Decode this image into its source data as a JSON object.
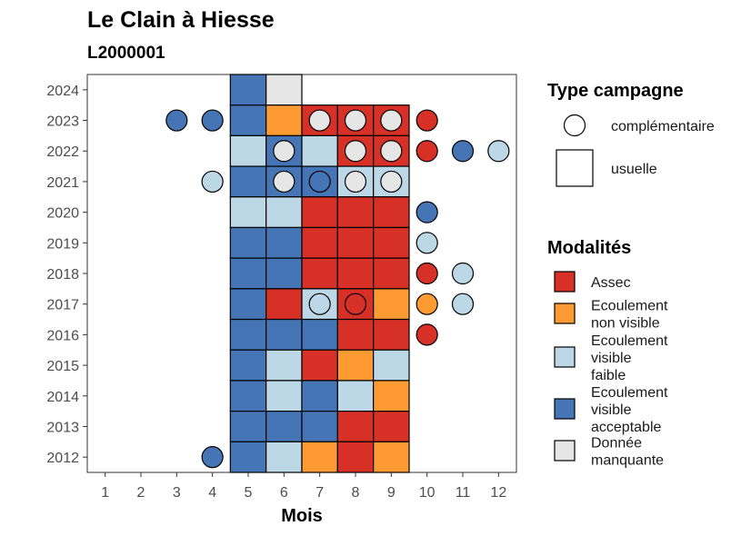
{
  "chart_data": {
    "type": "heatmap",
    "title": "Le Clain à Hiesse",
    "subtitle": "L2000001",
    "xlabel": "Mois",
    "ylabel": "",
    "x_ticks": [
      1,
      2,
      3,
      4,
      5,
      6,
      7,
      8,
      9,
      10,
      11,
      12
    ],
    "y_ticks": [
      2012,
      2013,
      2014,
      2015,
      2016,
      2017,
      2018,
      2019,
      2020,
      2021,
      2022,
      2023,
      2024
    ],
    "xlim": [
      0.5,
      12.5
    ],
    "ylim": [
      2011.5,
      2024.5
    ],
    "grid": false,
    "legend_position": "right",
    "legends": {
      "campagne": {
        "title": "Type campagne",
        "items": [
          {
            "key": "complementaire",
            "label": "complémentaire",
            "shape": "circle"
          },
          {
            "key": "usuelle",
            "label": "usuelle",
            "shape": "square"
          }
        ]
      },
      "modalites": {
        "title": "Modalités",
        "items": [
          {
            "key": "A",
            "lines": [
              "Assec"
            ]
          },
          {
            "key": "N",
            "lines": [
              "Ecoulement",
              "non visible"
            ]
          },
          {
            "key": "F",
            "lines": [
              "Ecoulement",
              "visible",
              "faible"
            ]
          },
          {
            "key": "V",
            "lines": [
              "Ecoulement",
              "visible",
              "acceptable"
            ]
          },
          {
            "key": "M",
            "lines": [
              "Donnée",
              "manquante"
            ]
          }
        ]
      }
    },
    "colors": {
      "A": "#d73027",
      "N": "#fd9a32",
      "F": "#bcd7e6",
      "V": "#4575b4",
      "M": "#e6e6e6"
    },
    "usuelle": [
      {
        "year": 2024,
        "month": 5,
        "value": "V"
      },
      {
        "year": 2024,
        "month": 6,
        "value": "M"
      },
      {
        "year": 2023,
        "month": 5,
        "value": "V"
      },
      {
        "year": 2023,
        "month": 6,
        "value": "N"
      },
      {
        "year": 2023,
        "month": 7,
        "value": "A"
      },
      {
        "year": 2023,
        "month": 8,
        "value": "A"
      },
      {
        "year": 2023,
        "month": 9,
        "value": "A"
      },
      {
        "year": 2022,
        "month": 5,
        "value": "F"
      },
      {
        "year": 2022,
        "month": 6,
        "value": "V"
      },
      {
        "year": 2022,
        "month": 7,
        "value": "F"
      },
      {
        "year": 2022,
        "month": 8,
        "value": "A"
      },
      {
        "year": 2022,
        "month": 9,
        "value": "A"
      },
      {
        "year": 2021,
        "month": 5,
        "value": "V"
      },
      {
        "year": 2021,
        "month": 6,
        "value": "V"
      },
      {
        "year": 2021,
        "month": 7,
        "value": "V"
      },
      {
        "year": 2021,
        "month": 8,
        "value": "F"
      },
      {
        "year": 2021,
        "month": 9,
        "value": "F"
      },
      {
        "year": 2020,
        "month": 5,
        "value": "F"
      },
      {
        "year": 2020,
        "month": 6,
        "value": "F"
      },
      {
        "year": 2020,
        "month": 7,
        "value": "A"
      },
      {
        "year": 2020,
        "month": 8,
        "value": "A"
      },
      {
        "year": 2020,
        "month": 9,
        "value": "A"
      },
      {
        "year": 2019,
        "month": 5,
        "value": "V"
      },
      {
        "year": 2019,
        "month": 6,
        "value": "V"
      },
      {
        "year": 2019,
        "month": 7,
        "value": "A"
      },
      {
        "year": 2019,
        "month": 8,
        "value": "A"
      },
      {
        "year": 2019,
        "month": 9,
        "value": "A"
      },
      {
        "year": 2018,
        "month": 5,
        "value": "V"
      },
      {
        "year": 2018,
        "month": 6,
        "value": "V"
      },
      {
        "year": 2018,
        "month": 7,
        "value": "A"
      },
      {
        "year": 2018,
        "month": 8,
        "value": "A"
      },
      {
        "year": 2018,
        "month": 9,
        "value": "A"
      },
      {
        "year": 2017,
        "month": 5,
        "value": "V"
      },
      {
        "year": 2017,
        "month": 6,
        "value": "A"
      },
      {
        "year": 2017,
        "month": 7,
        "value": "F"
      },
      {
        "year": 2017,
        "month": 8,
        "value": "A"
      },
      {
        "year": 2017,
        "month": 9,
        "value": "N"
      },
      {
        "year": 2016,
        "month": 5,
        "value": "V"
      },
      {
        "year": 2016,
        "month": 6,
        "value": "V"
      },
      {
        "year": 2016,
        "month": 7,
        "value": "V"
      },
      {
        "year": 2016,
        "month": 8,
        "value": "A"
      },
      {
        "year": 2016,
        "month": 9,
        "value": "A"
      },
      {
        "year": 2015,
        "month": 5,
        "value": "V"
      },
      {
        "year": 2015,
        "month": 6,
        "value": "F"
      },
      {
        "year": 2015,
        "month": 7,
        "value": "A"
      },
      {
        "year": 2015,
        "month": 8,
        "value": "N"
      },
      {
        "year": 2015,
        "month": 9,
        "value": "F"
      },
      {
        "year": 2014,
        "month": 5,
        "value": "V"
      },
      {
        "year": 2014,
        "month": 6,
        "value": "F"
      },
      {
        "year": 2014,
        "month": 7,
        "value": "V"
      },
      {
        "year": 2014,
        "month": 8,
        "value": "F"
      },
      {
        "year": 2014,
        "month": 9,
        "value": "N"
      },
      {
        "year": 2013,
        "month": 5,
        "value": "V"
      },
      {
        "year": 2013,
        "month": 6,
        "value": "V"
      },
      {
        "year": 2013,
        "month": 7,
        "value": "V"
      },
      {
        "year": 2013,
        "month": 8,
        "value": "A"
      },
      {
        "year": 2013,
        "month": 9,
        "value": "A"
      },
      {
        "year": 2012,
        "month": 5,
        "value": "V"
      },
      {
        "year": 2012,
        "month": 6,
        "value": "F"
      },
      {
        "year": 2012,
        "month": 7,
        "value": "N"
      },
      {
        "year": 2012,
        "month": 8,
        "value": "A"
      },
      {
        "year": 2012,
        "month": 9,
        "value": "N"
      }
    ],
    "complementaire": [
      {
        "year": 2023,
        "month": 3,
        "value": "V"
      },
      {
        "year": 2023,
        "month": 4,
        "value": "V"
      },
      {
        "year": 2023,
        "month": 7,
        "value": "M"
      },
      {
        "year": 2023,
        "month": 8,
        "value": "M"
      },
      {
        "year": 2023,
        "month": 9,
        "value": "M"
      },
      {
        "year": 2023,
        "month": 10,
        "value": "A"
      },
      {
        "year": 2022,
        "month": 6,
        "value": "M"
      },
      {
        "year": 2022,
        "month": 8,
        "value": "M"
      },
      {
        "year": 2022,
        "month": 9,
        "value": "M"
      },
      {
        "year": 2022,
        "month": 10,
        "value": "A"
      },
      {
        "year": 2022,
        "month": 11,
        "value": "V"
      },
      {
        "year": 2022,
        "month": 12,
        "value": "F"
      },
      {
        "year": 2021,
        "month": 4,
        "value": "F"
      },
      {
        "year": 2021,
        "month": 6,
        "value": "M"
      },
      {
        "year": 2021,
        "month": 7,
        "value": "V"
      },
      {
        "year": 2021,
        "month": 8,
        "value": "M"
      },
      {
        "year": 2021,
        "month": 9,
        "value": "M"
      },
      {
        "year": 2020,
        "month": 10,
        "value": "V"
      },
      {
        "year": 2019,
        "month": 10,
        "value": "F"
      },
      {
        "year": 2018,
        "month": 10,
        "value": "A"
      },
      {
        "year": 2018,
        "month": 11,
        "value": "F"
      },
      {
        "year": 2017,
        "month": 7,
        "value": "F"
      },
      {
        "year": 2017,
        "month": 8,
        "value": "A"
      },
      {
        "year": 2017,
        "month": 10,
        "value": "N"
      },
      {
        "year": 2017,
        "month": 11,
        "value": "F"
      },
      {
        "year": 2016,
        "month": 10,
        "value": "A"
      },
      {
        "year": 2012,
        "month": 4,
        "value": "V"
      }
    ]
  }
}
